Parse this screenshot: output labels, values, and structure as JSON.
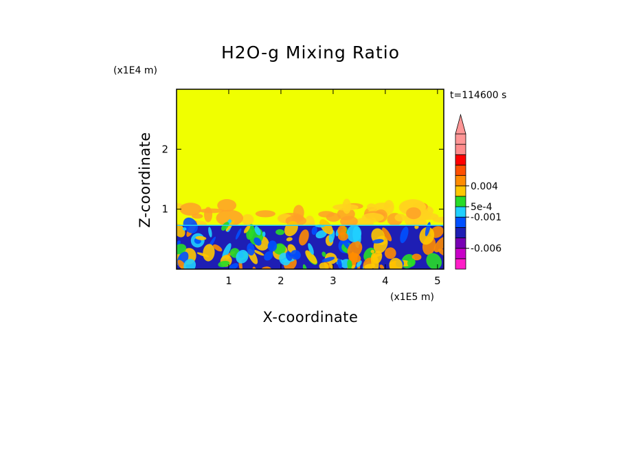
{
  "chart_data": {
    "type": "heatmap",
    "title": "H2O-g Mixing Ratio",
    "xlabel": "X-coordinate",
    "ylabel": "Z-coordinate",
    "x_scale_note": "(x1E5 m)",
    "y_scale_note": "(x1E4 m)",
    "time_label": "t=114600 s",
    "xlim": [
      0,
      5.12
    ],
    "ylim": [
      0,
      3.0
    ],
    "x_ticks": [
      1,
      2,
      3,
      4,
      5
    ],
    "y_ticks": [
      1,
      2
    ],
    "colorbar": {
      "labels": [
        {
          "text": "0.004",
          "level_index": 8
        },
        {
          "text": "5e-4",
          "level_index": 6
        },
        {
          "text": "-0.001",
          "level_index": 5
        },
        {
          "text": "-0.006",
          "level_index": 2
        }
      ],
      "colors": [
        "#ff1ec8",
        "#c800c8",
        "#7800b4",
        "#1e1eb4",
        "#0050ff",
        "#20d0ff",
        "#28dc28",
        "#ffc800",
        "#ff8c00",
        "#ff5000",
        "#ff0000",
        "#ff8c8c",
        "#ff9696"
      ],
      "extend": "max"
    },
    "fields": {
      "background_color": "#f0ff00",
      "upper_anomaly_colors": [
        "#ffd21e",
        "#ffa028"
      ],
      "boundary_layer_top": 0.73,
      "mixed_layer_colors": [
        "#1e1eb4",
        "#0050ff",
        "#20d0ff",
        "#28dc28",
        "#ffc800",
        "#ff8c00"
      ]
    }
  }
}
